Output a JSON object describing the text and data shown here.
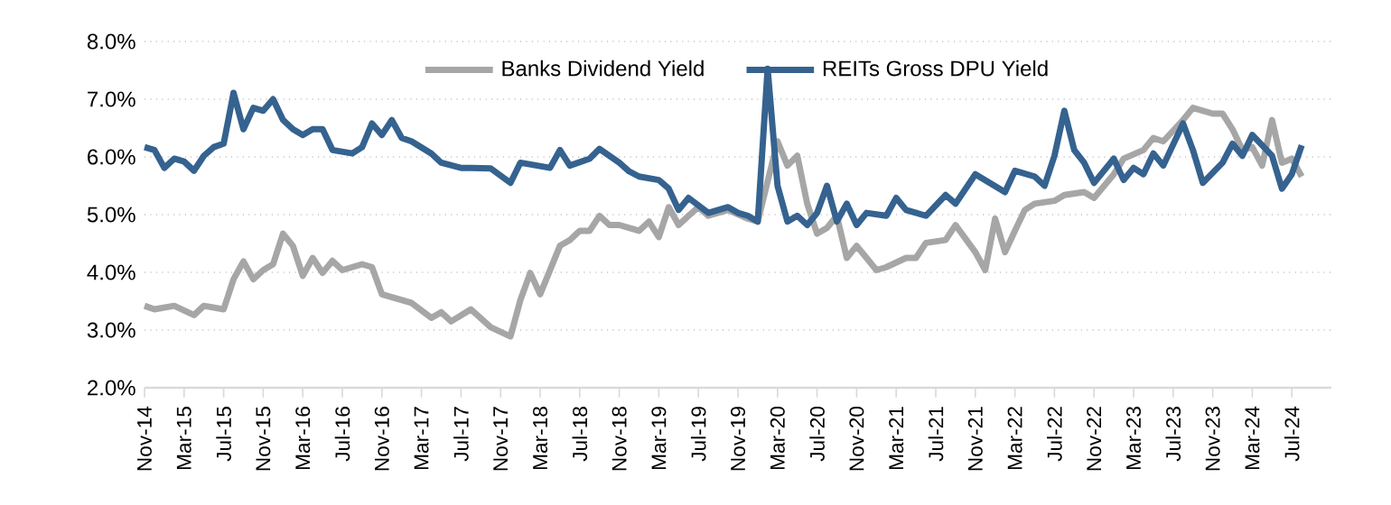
{
  "chart_data": {
    "type": "line",
    "legend": "top",
    "grid": "y",
    "line_style": "solid",
    "marker": "none",
    "xlim": [
      "2014-11",
      "2024-11"
    ],
    "ylim": [
      2,
      8
    ],
    "yticks": [
      {
        "value": 2,
        "label": "2.0%"
      },
      {
        "value": 3,
        "label": "3.0%"
      },
      {
        "value": 4,
        "label": "4.0%"
      },
      {
        "value": 5,
        "label": "5.0%"
      },
      {
        "value": 6,
        "label": "6.0%"
      },
      {
        "value": 7,
        "label": "7.0%"
      },
      {
        "value": 8,
        "label": "8.0%"
      }
    ],
    "xticks": [
      {
        "value": "2014-11",
        "label": "Nov-14"
      },
      {
        "value": "2015-03",
        "label": "Mar-15"
      },
      {
        "value": "2015-07",
        "label": "Jul-15"
      },
      {
        "value": "2015-11",
        "label": "Nov-15"
      },
      {
        "value": "2016-03",
        "label": "Mar-16"
      },
      {
        "value": "2016-07",
        "label": "Jul-16"
      },
      {
        "value": "2016-11",
        "label": "Nov-16"
      },
      {
        "value": "2017-03",
        "label": "Mar-17"
      },
      {
        "value": "2017-07",
        "label": "Jul-17"
      },
      {
        "value": "2017-11",
        "label": "Nov-17"
      },
      {
        "value": "2018-03",
        "label": "Mar-18"
      },
      {
        "value": "2018-07",
        "label": "Jul-18"
      },
      {
        "value": "2018-11",
        "label": "Nov-18"
      },
      {
        "value": "2019-03",
        "label": "Mar-19"
      },
      {
        "value": "2019-07",
        "label": "Jul-19"
      },
      {
        "value": "2019-11",
        "label": "Nov-19"
      },
      {
        "value": "2020-03",
        "label": "Mar-20"
      },
      {
        "value": "2020-07",
        "label": "Jul-20"
      },
      {
        "value": "2020-11",
        "label": "Nov-20"
      },
      {
        "value": "2021-03",
        "label": "Mar-21"
      },
      {
        "value": "2021-07",
        "label": "Jul-21"
      },
      {
        "value": "2021-11",
        "label": "Nov-21"
      },
      {
        "value": "2022-03",
        "label": "Mar-22"
      },
      {
        "value": "2022-07",
        "label": "Jul-22"
      },
      {
        "value": "2022-11",
        "label": "Nov-22"
      },
      {
        "value": "2023-03",
        "label": "Mar-23"
      },
      {
        "value": "2023-07",
        "label": "Jul-23"
      },
      {
        "value": "2023-11",
        "label": "Nov-23"
      },
      {
        "value": "2024-03",
        "label": "Mar-24"
      },
      {
        "value": "2024-07",
        "label": "Jul-24"
      }
    ],
    "series": [
      {
        "name": "Banks Dividend Yield",
        "color": "#a6a6a6",
        "x": [
          "2014-11",
          "2014-12",
          "2015-02",
          "2015-04",
          "2015-05",
          "2015-07",
          "2015-08",
          "2015-09",
          "2015-10",
          "2015-11",
          "2015-12",
          "2016-01",
          "2016-02",
          "2016-03",
          "2016-04",
          "2016-05",
          "2016-06",
          "2016-07",
          "2016-09",
          "2016-10",
          "2016-11",
          "2016-12",
          "2017-02",
          "2017-04",
          "2017-05",
          "2017-06",
          "2017-08",
          "2017-10",
          "2017-12",
          "2018-01",
          "2018-02",
          "2018-03",
          "2018-05",
          "2018-06",
          "2018-07",
          "2018-08",
          "2018-09",
          "2018-10",
          "2018-11",
          "2019-01",
          "2019-02",
          "2019-03",
          "2019-04",
          "2019-05",
          "2019-06",
          "2019-07",
          "2019-08",
          "2019-10",
          "2019-12",
          "2020-01",
          "2020-03",
          "2020-04",
          "2020-05",
          "2020-06",
          "2020-07",
          "2020-08",
          "2020-09",
          "2020-10",
          "2020-11",
          "2020-12",
          "2021-01",
          "2021-02",
          "2021-04",
          "2021-05",
          "2021-06",
          "2021-08",
          "2021-09",
          "2021-11",
          "2021-12",
          "2022-01",
          "2022-02",
          "2022-03",
          "2022-04",
          "2022-05",
          "2022-07",
          "2022-08",
          "2022-10",
          "2022-11",
          "2023-01",
          "2023-02",
          "2023-04",
          "2023-05",
          "2023-06",
          "2023-08",
          "2023-09",
          "2023-11",
          "2023-12",
          "2024-01",
          "2024-02",
          "2024-03",
          "2024-04",
          "2024-05",
          "2024-06",
          "2024-07",
          "2024-08"
        ],
        "values": [
          3.42,
          3.36,
          3.42,
          3.26,
          3.42,
          3.36,
          3.88,
          4.19,
          3.88,
          4.04,
          4.14,
          4.67,
          4.46,
          3.94,
          4.25,
          3.99,
          4.2,
          4.04,
          4.14,
          4.09,
          3.62,
          3.57,
          3.47,
          3.21,
          3.31,
          3.15,
          3.36,
          3.05,
          2.89,
          3.52,
          3.99,
          3.62,
          4.46,
          4.56,
          4.72,
          4.72,
          4.98,
          4.82,
          4.82,
          4.72,
          4.88,
          4.61,
          5.13,
          4.82,
          4.98,
          5.13,
          4.98,
          5.08,
          4.93,
          4.88,
          6.27,
          5.85,
          6.02,
          5.19,
          4.67,
          4.77,
          4.98,
          4.25,
          4.46,
          4.25,
          4.04,
          4.09,
          4.25,
          4.25,
          4.51,
          4.56,
          4.82,
          4.35,
          4.04,
          4.93,
          4.35,
          4.72,
          5.08,
          5.19,
          5.24,
          5.34,
          5.39,
          5.29,
          5.7,
          5.97,
          6.12,
          6.33,
          6.27,
          6.64,
          6.85,
          6.75,
          6.75,
          6.48,
          6.12,
          6.17,
          5.85,
          6.64,
          5.9,
          5.97,
          5.66
        ]
      },
      {
        "name": "REITs Gross DPU Yield",
        "color": "#35628f",
        "x": [
          "2014-11",
          "2014-12",
          "2015-01",
          "2015-02",
          "2015-03",
          "2015-04",
          "2015-05",
          "2015-06",
          "2015-07",
          "2015-08",
          "2015-09",
          "2015-10",
          "2015-11",
          "2015-12",
          "2016-01",
          "2016-02",
          "2016-03",
          "2016-04",
          "2016-05",
          "2016-06",
          "2016-08",
          "2016-09",
          "2016-10",
          "2016-11",
          "2016-12",
          "2017-01",
          "2017-02",
          "2017-04",
          "2017-05",
          "2017-07",
          "2017-08",
          "2017-10",
          "2017-12",
          "2018-01",
          "2018-04",
          "2018-05",
          "2018-06",
          "2018-08",
          "2018-09",
          "2018-11",
          "2018-12",
          "2019-01",
          "2019-03",
          "2019-04",
          "2019-05",
          "2019-06",
          "2019-08",
          "2019-10",
          "2019-11",
          "2019-12",
          "2020-01",
          "2020-02",
          "2020-03",
          "2020-04",
          "2020-05",
          "2020-06",
          "2020-07",
          "2020-08",
          "2020-09",
          "2020-10",
          "2020-11",
          "2020-12",
          "2021-02",
          "2021-03",
          "2021-04",
          "2021-05",
          "2021-06",
          "2021-08",
          "2021-09",
          "2021-11",
          "2022-02",
          "2022-03",
          "2022-05",
          "2022-06",
          "2022-07",
          "2022-08",
          "2022-09",
          "2022-10",
          "2022-11",
          "2023-01",
          "2023-02",
          "2023-03",
          "2023-04",
          "2023-05",
          "2023-06",
          "2023-08",
          "2023-09",
          "2023-10",
          "2023-12",
          "2024-01",
          "2024-02",
          "2024-03",
          "2024-05",
          "2024-06",
          "2024-07",
          "2024-08"
        ],
        "values": [
          6.17,
          6.12,
          5.81,
          5.97,
          5.92,
          5.76,
          6.02,
          6.17,
          6.23,
          7.11,
          6.48,
          6.85,
          6.8,
          7.0,
          6.64,
          6.48,
          6.38,
          6.48,
          6.48,
          6.12,
          6.06,
          6.17,
          6.58,
          6.38,
          6.64,
          6.33,
          6.27,
          6.06,
          5.9,
          5.81,
          5.81,
          5.8,
          5.55,
          5.9,
          5.81,
          6.12,
          5.85,
          5.97,
          6.14,
          5.9,
          5.75,
          5.66,
          5.6,
          5.45,
          5.08,
          5.29,
          5.03,
          5.13,
          5.03,
          4.98,
          4.88,
          7.53,
          5.5,
          4.88,
          4.98,
          4.82,
          5.03,
          5.5,
          4.88,
          5.19,
          4.82,
          5.03,
          4.98,
          5.29,
          5.08,
          5.03,
          4.98,
          5.34,
          5.19,
          5.7,
          5.39,
          5.76,
          5.66,
          5.5,
          6.02,
          6.8,
          6.12,
          5.9,
          5.55,
          5.97,
          5.6,
          5.81,
          5.7,
          6.06,
          5.85,
          6.58,
          6.12,
          5.55,
          5.9,
          6.23,
          6.02,
          6.38,
          6.02,
          5.45,
          5.7,
          6.2
        ]
      }
    ]
  }
}
